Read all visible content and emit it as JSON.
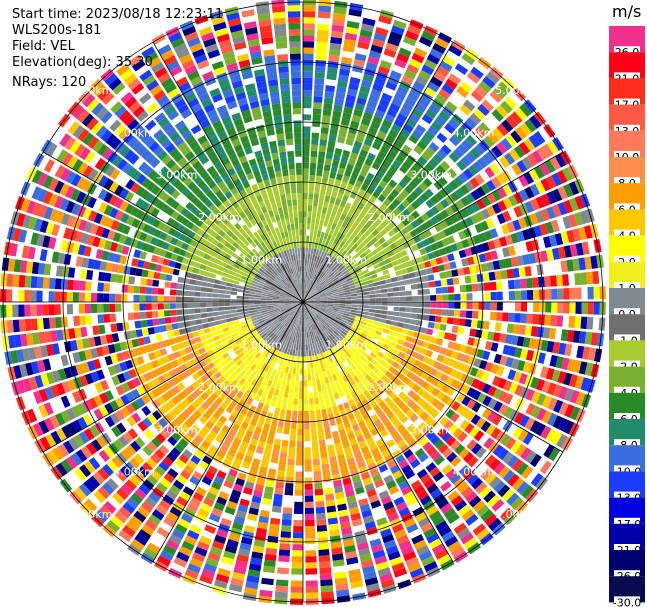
{
  "header": {
    "start_time": "Start time: 2023/08/18 12:23:11",
    "instrument": "WLS200s-181",
    "field": "Field: VEL",
    "elevation": "Elevation(deg): 35.30",
    "nrays": "NRays: 120"
  },
  "ring_labels": [
    "1.00km",
    "2.00km",
    "3.00km",
    "4.00km",
    "5.00km"
  ],
  "colorbar": {
    "unit": "m/s",
    "levels": [
      {
        "label": "26.0",
        "color": "#f0308c"
      },
      {
        "label": "21.0",
        "color": "#ff0018"
      },
      {
        "label": "17.0",
        "color": "#ff2d1e"
      },
      {
        "label": "13.0",
        "color": "#ff5a46"
      },
      {
        "label": "10.0",
        "color": "#ff7a5a"
      },
      {
        "label": "8.0",
        "color": "#ff8f4a"
      },
      {
        "label": "6.0",
        "color": "#ff9e00"
      },
      {
        "label": "4.0",
        "color": "#ffc800"
      },
      {
        "label": "2.0",
        "color": "#ffff00"
      },
      {
        "label": "1.0",
        "color": "#f0f020"
      },
      {
        "label": "0.0",
        "color": "#808890"
      },
      {
        "label": "-1.0",
        "color": "#707070"
      },
      {
        "label": "-2.0",
        "color": "#a8cc30"
      },
      {
        "label": "-4.0",
        "color": "#7ab030"
      },
      {
        "label": "-6.0",
        "color": "#2a8a2a"
      },
      {
        "label": "-8.0",
        "color": "#208c6a"
      },
      {
        "label": "-10.0",
        "color": "#3d6ee0"
      },
      {
        "label": "-13.0",
        "color": "#1a3cff"
      },
      {
        "label": "-17.0",
        "color": "#0000e0"
      },
      {
        "label": "-21.0",
        "color": "#0000a8"
      },
      {
        "label": "-26.0",
        "color": "#000070"
      },
      {
        "label": "-30.0",
        "color": "#0a0a50"
      }
    ]
  },
  "palette": {
    "noise": [
      "#f0308c",
      "#ff0018",
      "#ff5a46",
      "#ff9e00",
      "#ffff00",
      "#808890",
      "#2a8a2a",
      "#3d6ee0",
      "#1a3cff",
      "#0000a8",
      "#7ab030",
      "#ffc800",
      "#ff7a5a",
      "#ffffff",
      "#000070",
      "#ff2d1e"
    ],
    "north": [
      "#ff9e00",
      "#ffc800",
      "#ff8f4a",
      "#ff9e00",
      "#ffc800"
    ],
    "near_north": [
      "#ffff00",
      "#f0f020",
      "#ffff00",
      "#ffc800"
    ],
    "near_south": [
      "#a8cc30",
      "#7ab030",
      "#a8cc30"
    ],
    "south": [
      "#2a8a2a",
      "#208c6a",
      "#2a8a2a",
      "#7ab030"
    ],
    "far_south": [
      "#3d6ee0",
      "#208c6a",
      "#1a3cff",
      "#3d6ee0"
    ],
    "center": [
      "#808890",
      "#707070",
      "#8a909a"
    ]
  }
}
